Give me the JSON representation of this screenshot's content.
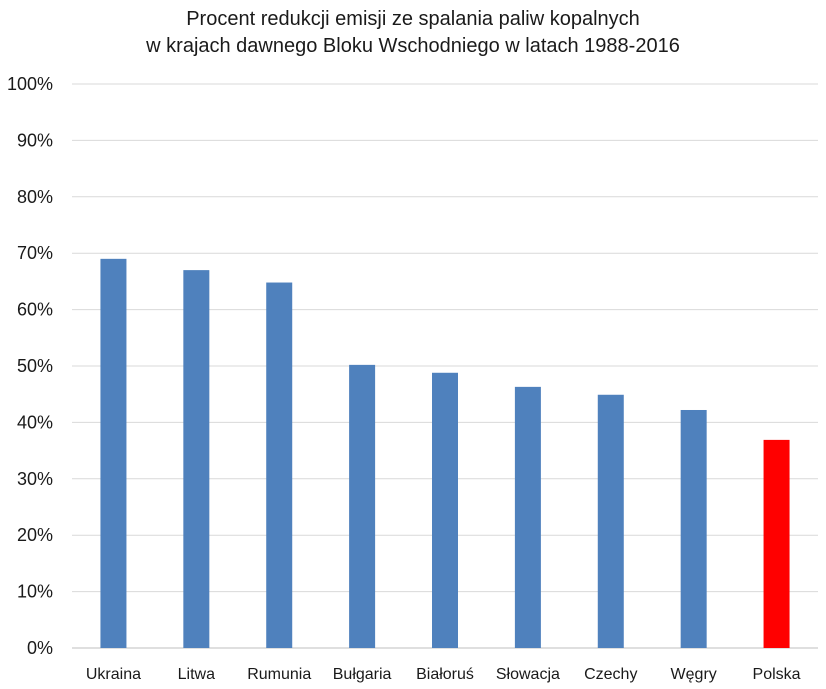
{
  "chart_data": {
    "type": "bar",
    "title_lines": [
      "Procent redukcji emisji ze spalania paliw kopalnych",
      "w krajach dawnego Bloku Wschodniego w latach 1988-2016"
    ],
    "categories": [
      "Ukraina",
      "Litwa",
      "Rumunia",
      "Bułgaria",
      "Białoruś",
      "Słowacja",
      "Czechy",
      "Węgry",
      "Polska"
    ],
    "values": [
      69,
      67,
      64.8,
      50.2,
      48.8,
      46.3,
      44.9,
      42.2,
      36.9
    ],
    "value_unit": "%",
    "ylim": [
      0,
      100
    ],
    "yticks": [
      0,
      10,
      20,
      30,
      40,
      50,
      60,
      70,
      80,
      90,
      100
    ],
    "ytick_labels": [
      "0%",
      "10%",
      "20%",
      "30%",
      "40%",
      "50%",
      "60%",
      "70%",
      "80%",
      "90%",
      "100%"
    ],
    "xlabel": "",
    "ylabel": "",
    "grid": "horizontal",
    "legend": "none",
    "colors": {
      "bar": "#4f81bd",
      "highlight": "#ff0000",
      "highlight_category": "Polska",
      "grid": "#d9d9d9",
      "axis": "#bfbfbf",
      "text": "#1a1a1a"
    }
  }
}
